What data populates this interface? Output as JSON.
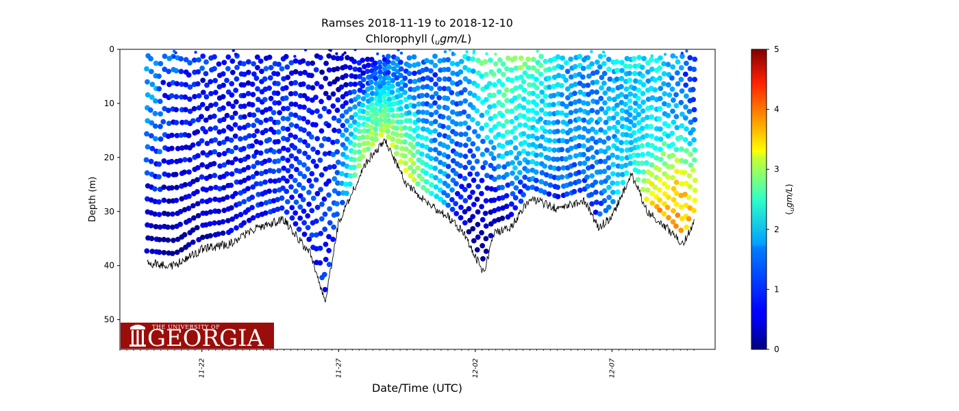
{
  "chart_data": {
    "type": "scatter",
    "title": "Ramses 2018-11-19 to 2018-12-10",
    "subtitle_prefix": "Chlorophyll (",
    "subtitle_unit_sub": "u",
    "subtitle_unit": "gm/L",
    "subtitle_suffix": ")",
    "xlabel": "Date/Time (UTC)",
    "ylabel": "Depth (m)",
    "x_ticks": [
      "11-22",
      "11-27",
      "12-02",
      "12-07"
    ],
    "x_tick_dates": [
      "2018-11-22",
      "2018-11-27",
      "2018-12-02",
      "2018-12-07"
    ],
    "xlim": [
      "2018-11-19",
      "2018-12-10"
    ],
    "ylim": [
      55.5,
      0
    ],
    "y_ticks": [
      0,
      10,
      20,
      30,
      40,
      50
    ],
    "y_inverted": true,
    "colorbar": {
      "label_prefix": "(",
      "label_sub": "u",
      "label_main": "gm/L",
      "label_suffix": ")",
      "range": [
        0,
        5
      ],
      "ticks": [
        0,
        1,
        2,
        3,
        4,
        5
      ],
      "colormap": "jet"
    },
    "data_start": "2018-11-20",
    "data_end": "2018-12-10",
    "bottom_depth_profile": {
      "dates": [
        "2018-11-20",
        "2018-11-21",
        "2018-11-22",
        "2018-11-23",
        "2018-11-24",
        "2018-11-25",
        "2018-11-25.5",
        "2018-11-26",
        "2018-11-26.5",
        "2018-11-27",
        "2018-11-28",
        "2018-11-28.7",
        "2018-11-29.5",
        "2018-11-30",
        "2018-12-01",
        "2018-12-01.6",
        "2018-12-02.3",
        "2018-12-02.7",
        "2018-12-03.3",
        "2018-12-04",
        "2018-12-05",
        "2018-12-06",
        "2018-12-06.5",
        "2018-12-07",
        "2018-12-07.7",
        "2018-12-08.3",
        "2018-12-09",
        "2018-12-09.6",
        "2018-12-10"
      ],
      "depth_m": [
        39.5,
        40,
        37,
        36,
        33,
        31.5,
        35,
        38,
        47,
        32,
        21,
        17,
        25,
        27.5,
        31,
        34,
        41.5,
        34,
        33,
        27.5,
        29.5,
        28,
        33,
        31,
        23,
        30,
        33,
        36,
        32
      ]
    },
    "profile_points_chl": [
      {
        "x": "2018-11-20",
        "y": 5,
        "chl": 1.3
      },
      {
        "x": "2018-11-22",
        "y": 10,
        "chl": 0.6
      },
      {
        "x": "2018-11-23",
        "y": 15,
        "chl": 0.8
      },
      {
        "x": "2018-11-25",
        "y": 20,
        "chl": 1.0
      },
      {
        "x": "2018-11-26",
        "y": 40,
        "chl": 0.9
      },
      {
        "x": "2018-11-29",
        "y": 24,
        "chl": 3.5
      },
      {
        "x": "2018-12-01",
        "y": 10,
        "chl": 1.1
      },
      {
        "x": "2018-12-03",
        "y": 3,
        "chl": 2.7
      },
      {
        "x": "2018-12-04",
        "y": 8,
        "chl": 2.0
      },
      {
        "x": "2018-12-06",
        "y": 12,
        "chl": 1.4
      },
      {
        "x": "2018-12-08",
        "y": 10,
        "chl": 1.9
      },
      {
        "x": "2018-12-09",
        "y": 33,
        "chl": 4.2
      }
    ],
    "grid": false,
    "legend": "none"
  },
  "logo": {
    "line1": "THE UNIVERSITY OF",
    "line2": "GEORGIA",
    "bg_color": "#9b0d0a",
    "icon": "arch-pillars-icon"
  },
  "colors": {
    "axes": "#000000",
    "bottom_line": "#000000"
  }
}
